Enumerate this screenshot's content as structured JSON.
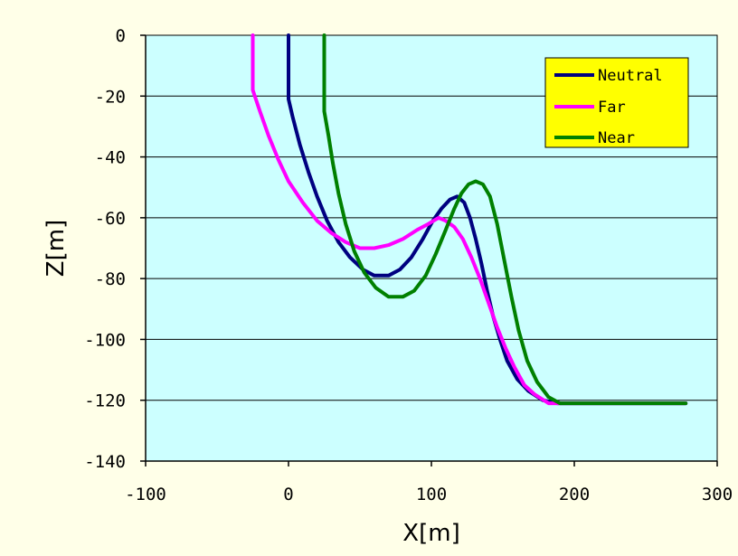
{
  "chart_data": {
    "type": "line",
    "xlabel": "X[m]",
    "ylabel": "Z[m]",
    "xlim": [
      -100,
      300
    ],
    "ylim": [
      -140,
      0
    ],
    "x_ticks": [
      "-100",
      "0",
      "100",
      "200",
      "300"
    ],
    "y_ticks": [
      "0",
      "-20",
      "-40",
      "-60",
      "-80",
      "-100",
      "-120",
      "-140"
    ],
    "grid": "horizontal",
    "legend_position": "top-right",
    "colors": {
      "plot_background": "#CCFFFF",
      "page_background": "#FFFFE8",
      "legend_background": "#FFFF00",
      "grid": "#000000"
    },
    "series": [
      {
        "name": "Neutral",
        "color": "#000080",
        "points": [
          [
            0,
            0
          ],
          [
            0,
            -21
          ],
          [
            3,
            -27
          ],
          [
            8,
            -36
          ],
          [
            14,
            -45
          ],
          [
            20,
            -53
          ],
          [
            27,
            -61
          ],
          [
            35,
            -68
          ],
          [
            43,
            -73
          ],
          [
            52,
            -77
          ],
          [
            60,
            -79
          ],
          [
            70,
            -79
          ],
          [
            78,
            -77
          ],
          [
            86,
            -73
          ],
          [
            94,
            -67
          ],
          [
            101,
            -61
          ],
          [
            107,
            -57
          ],
          [
            113,
            -54
          ],
          [
            118,
            -53
          ],
          [
            123,
            -55
          ],
          [
            127,
            -60
          ],
          [
            131,
            -67
          ],
          [
            135,
            -75
          ],
          [
            139,
            -84
          ],
          [
            143,
            -92
          ],
          [
            148,
            -100
          ],
          [
            153,
            -107
          ],
          [
            160,
            -113
          ],
          [
            168,
            -117
          ],
          [
            178,
            -120
          ],
          [
            188,
            -121
          ],
          [
            220,
            -121
          ],
          [
            278,
            -121
          ]
        ]
      },
      {
        "name": "Far",
        "color": "#FF00FF",
        "points": [
          [
            -25,
            0
          ],
          [
            -25,
            -18
          ],
          [
            -20,
            -25
          ],
          [
            -14,
            -33
          ],
          [
            -7,
            -41
          ],
          [
            0,
            -48
          ],
          [
            10,
            -55
          ],
          [
            20,
            -61
          ],
          [
            30,
            -65
          ],
          [
            40,
            -68
          ],
          [
            50,
            -70
          ],
          [
            60,
            -70
          ],
          [
            70,
            -69
          ],
          [
            80,
            -67
          ],
          [
            90,
            -64
          ],
          [
            98,
            -62
          ],
          [
            105,
            -60
          ],
          [
            110,
            -61
          ],
          [
            116,
            -63
          ],
          [
            122,
            -67
          ],
          [
            128,
            -73
          ],
          [
            134,
            -80
          ],
          [
            140,
            -88
          ],
          [
            146,
            -96
          ],
          [
            152,
            -103
          ],
          [
            158,
            -109
          ],
          [
            165,
            -115
          ],
          [
            172,
            -118
          ],
          [
            182,
            -121
          ],
          [
            200,
            -121
          ],
          [
            278,
            -121
          ]
        ]
      },
      {
        "name": "Near",
        "color": "#008000",
        "points": [
          [
            25,
            0
          ],
          [
            25,
            -25
          ],
          [
            28,
            -33
          ],
          [
            31,
            -42
          ],
          [
            35,
            -52
          ],
          [
            40,
            -62
          ],
          [
            46,
            -71
          ],
          [
            53,
            -78
          ],
          [
            61,
            -83
          ],
          [
            70,
            -86
          ],
          [
            80,
            -86
          ],
          [
            88,
            -84
          ],
          [
            96,
            -79
          ],
          [
            103,
            -72
          ],
          [
            110,
            -64
          ],
          [
            116,
            -57
          ],
          [
            121,
            -52
          ],
          [
            126,
            -49
          ],
          [
            131,
            -48
          ],
          [
            136,
            -49
          ],
          [
            141,
            -53
          ],
          [
            146,
            -62
          ],
          [
            151,
            -74
          ],
          [
            156,
            -86
          ],
          [
            161,
            -97
          ],
          [
            167,
            -107
          ],
          [
            174,
            -114
          ],
          [
            182,
            -119
          ],
          [
            190,
            -121
          ],
          [
            220,
            -121
          ],
          [
            278,
            -121
          ]
        ]
      }
    ]
  }
}
